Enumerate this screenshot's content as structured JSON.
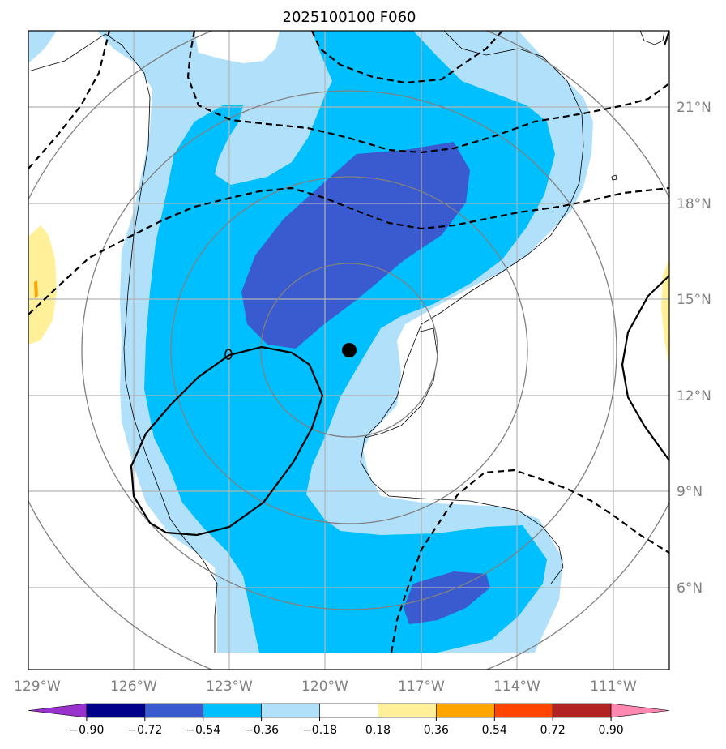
{
  "chart_data": {
    "type": "contour_map",
    "title": "2025100100 F060",
    "x_ticks": [
      "129°W",
      "126°W",
      "123°W",
      "120°W",
      "117°W",
      "114°W",
      "111°W"
    ],
    "y_ticks": [
      "21°N",
      "18°N",
      "15°N",
      "12°N",
      "9°N",
      "6°N"
    ],
    "lon_values": [
      -129,
      -126,
      -123,
      -120,
      -117,
      -114,
      -111
    ],
    "lat_values": [
      21,
      18,
      15,
      12,
      9,
      6
    ],
    "lon_range": [
      -129.2,
      -109.0
    ],
    "lat_range": [
      3.0,
      23.3
    ],
    "grid": true,
    "storm_center": {
      "lon": -119.2,
      "lat": 13.4
    },
    "colorbar": {
      "levels": [
        "-0.90",
        "-0.72",
        "-0.54",
        "-0.36",
        "-0.18",
        "0.18",
        "0.36",
        "0.54",
        "0.72",
        "0.90"
      ],
      "colors": [
        "#9932cc",
        "#00008b",
        "#3a5bd0",
        "#00bfff",
        "#b0e0fa",
        "#ffffff",
        "#fff099",
        "#ffa500",
        "#ff4500",
        "#b22222",
        "#ff88b0"
      ],
      "extend": "both"
    },
    "contour_lines": {
      "positive_style": "solid",
      "negative_style": "dashed"
    },
    "range_rings": "gray concentric circles around storm center"
  }
}
